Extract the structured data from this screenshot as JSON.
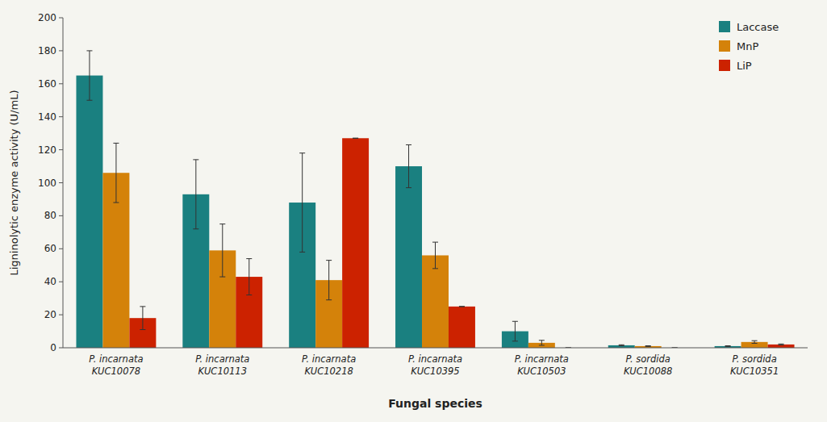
{
  "chart_data": {
    "type": "bar",
    "categories": [
      "P. incarnata\nKUC10078",
      "P. incarnata\nKUC10113",
      "P. incarnata\nKUC10218",
      "P. incarnata\nKUC10395",
      "P. incarnata\nKUC10503",
      "P. sordida\nKUC10088",
      "P. sordida\nKUC10351"
    ],
    "series": [
      {
        "name": "Laccase",
        "color": "#1a8080",
        "values": [
          165,
          93,
          88,
          110,
          10,
          1.5,
          1.0
        ],
        "errors": [
          15,
          21,
          30,
          13,
          6,
          0.3,
          0.2
        ]
      },
      {
        "name": "MnP",
        "color": "#d4820a",
        "values": [
          106,
          59,
          41,
          56,
          3,
          1.0,
          3.5
        ],
        "errors": [
          18,
          16,
          12,
          8,
          1.5,
          0.2,
          0.8
        ]
      },
      {
        "name": "LiP",
        "color": "#cc2200",
        "values": [
          18,
          43,
          127,
          25,
          0,
          0,
          2.0
        ],
        "errors": [
          7,
          11,
          0,
          0,
          0,
          0,
          0.3
        ]
      }
    ],
    "x_label": "Fungal species",
    "y_label": "Ligninolytic enzyme activity (U/mL)",
    "ylim": [
      0,
      200
    ],
    "yticks": [
      0,
      20,
      40,
      60,
      80,
      100,
      120,
      140,
      160,
      180,
      200
    ],
    "grid": false,
    "legend": "upper right"
  }
}
